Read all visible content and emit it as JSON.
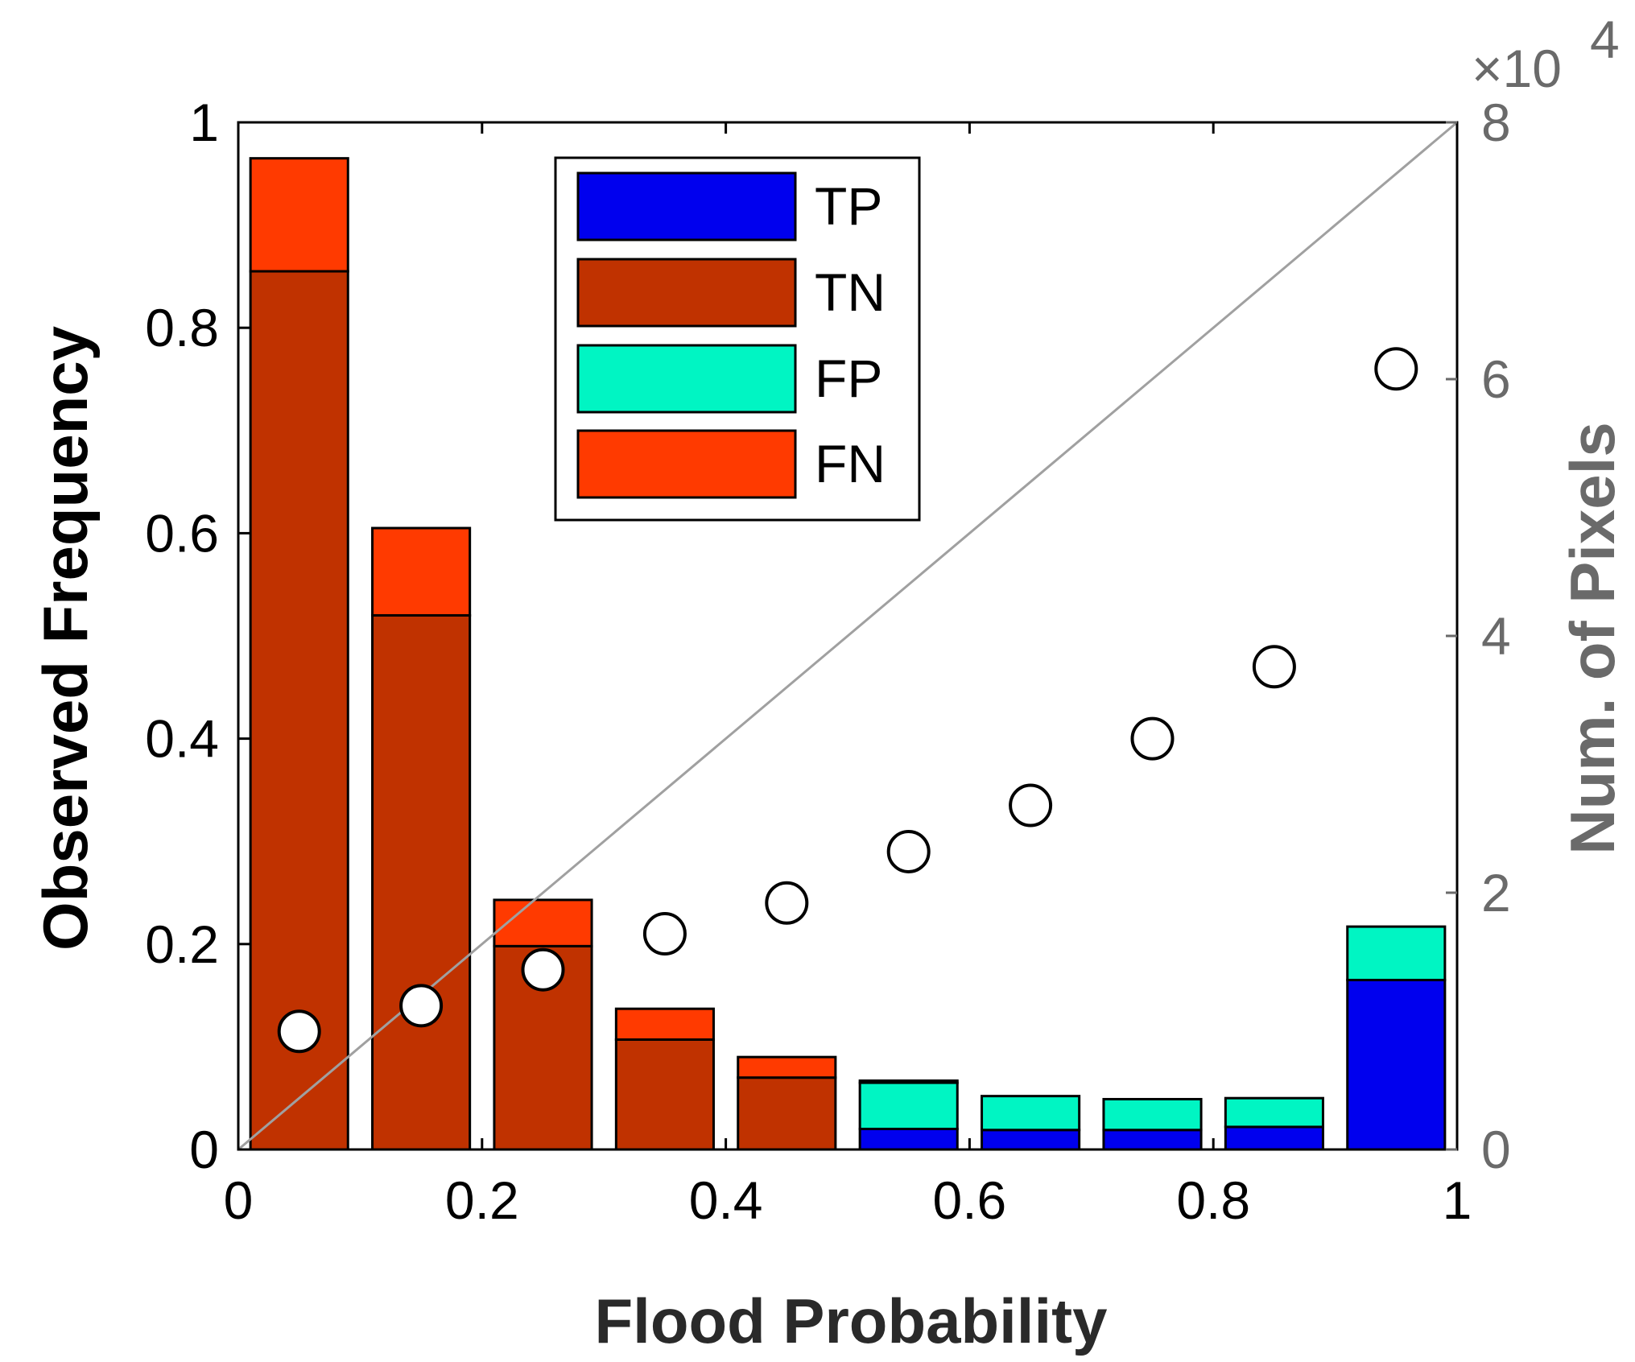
{
  "chart_data": {
    "type": "bar",
    "subtype": "stacked-bar-with-scatter",
    "xlabel": "Flood Probability",
    "ylabel_left": "Observed Frequency",
    "ylabel_right": "Num. of Pixels",
    "right_axis_multiplier": "×10",
    "right_axis_exponent": "4",
    "xlim": [
      0,
      1
    ],
    "ylim_left": [
      0,
      1
    ],
    "ylim_right": [
      0,
      8
    ],
    "x_ticks": [
      "0",
      "0.2",
      "0.4",
      "0.6",
      "0.8",
      "1"
    ],
    "y_left_ticks": [
      "0",
      "0.2",
      "0.4",
      "0.6",
      "0.8",
      "1"
    ],
    "y_right_ticks": [
      "0",
      "2",
      "4",
      "6",
      "8"
    ],
    "bin_centers": [
      0.05,
      0.15,
      0.25,
      0.35,
      0.45,
      0.55,
      0.65,
      0.75,
      0.85,
      0.95
    ],
    "series": [
      {
        "name": "TP",
        "color": "#0000ee",
        "values": [
          0,
          0,
          0,
          0,
          0,
          0.02,
          0.019,
          0.019,
          0.022,
          0.165
        ]
      },
      {
        "name": "TN",
        "color": "#c03200",
        "values": [
          0.855,
          0.52,
          0.198,
          0.107,
          0.07,
          0,
          0,
          0,
          0,
          0
        ]
      },
      {
        "name": "FP",
        "color": "#00f5c3",
        "values": [
          0,
          0,
          0,
          0,
          0,
          0.045,
          0.033,
          0.03,
          0.028,
          0.052
        ]
      },
      {
        "name": "FN",
        "color": "#ff3a00",
        "values": [
          0.11,
          0.085,
          0.045,
          0.03,
          0.02,
          0.002,
          0,
          0,
          0,
          0
        ]
      }
    ],
    "scatter": {
      "name": "Observed Frequency",
      "x": [
        0.05,
        0.15,
        0.25,
        0.35,
        0.45,
        0.55,
        0.65,
        0.75,
        0.85,
        0.95
      ],
      "y": [
        0.115,
        0.14,
        0.175,
        0.21,
        0.24,
        0.29,
        0.335,
        0.4,
        0.47,
        0.76
      ]
    },
    "reference_line": {
      "from": [
        0,
        0
      ],
      "to": [
        1,
        1
      ],
      "color": "#a0a0a0"
    },
    "legend": [
      "TP",
      "TN",
      "FP",
      "FN"
    ],
    "legend_position": "top-center"
  }
}
